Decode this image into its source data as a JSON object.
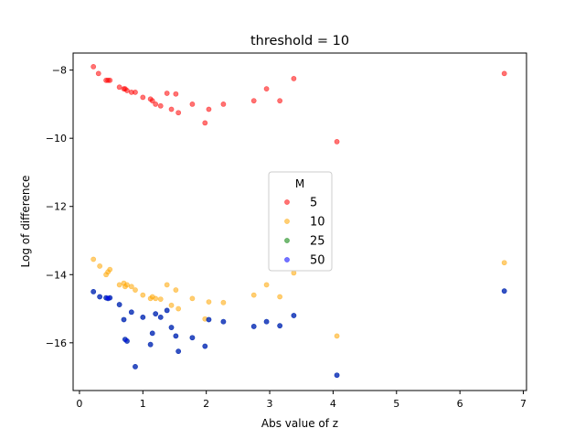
{
  "chart_data": {
    "type": "scatter",
    "title": "threshold = 10",
    "xlabel": "Abs value of z",
    "ylabel": "Log of difference",
    "xlim": [
      -0.1,
      7.05
    ],
    "ylim": [
      -17.4,
      -7.5
    ],
    "xticks": [
      0,
      1,
      2,
      3,
      4,
      5,
      6,
      7
    ],
    "yticks": [
      -16,
      -14,
      -12,
      -10,
      -8
    ],
    "grid": false,
    "legend": {
      "title": "M",
      "placement": "center"
    },
    "series": [
      {
        "name": "5",
        "color": "#ff0000",
        "opacity": 0.55,
        "points": [
          [
            0.22,
            -7.9
          ],
          [
            0.3,
            -8.1
          ],
          [
            0.42,
            -8.3
          ],
          [
            0.45,
            -8.3
          ],
          [
            0.48,
            -8.3
          ],
          [
            0.63,
            -8.5
          ],
          [
            0.7,
            -8.55
          ],
          [
            0.72,
            -8.55
          ],
          [
            0.75,
            -8.6
          ],
          [
            0.82,
            -8.65
          ],
          [
            0.88,
            -8.65
          ],
          [
            1.0,
            -8.8
          ],
          [
            1.12,
            -8.85
          ],
          [
            1.15,
            -8.9
          ],
          [
            1.2,
            -9.0
          ],
          [
            1.28,
            -9.05
          ],
          [
            1.38,
            -8.68
          ],
          [
            1.45,
            -9.15
          ],
          [
            1.52,
            -8.7
          ],
          [
            1.56,
            -9.25
          ],
          [
            1.78,
            -9.0
          ],
          [
            1.98,
            -9.55
          ],
          [
            2.04,
            -9.15
          ],
          [
            2.27,
            -9.0
          ],
          [
            2.75,
            -8.9
          ],
          [
            2.95,
            -8.55
          ],
          [
            3.16,
            -8.9
          ],
          [
            3.38,
            -8.25
          ],
          [
            4.06,
            -10.1
          ],
          [
            6.7,
            -8.1
          ]
        ]
      },
      {
        "name": "10",
        "color": "#ffa500",
        "opacity": 0.55,
        "points": [
          [
            0.22,
            -13.55
          ],
          [
            0.32,
            -13.75
          ],
          [
            0.42,
            -14.0
          ],
          [
            0.45,
            -13.92
          ],
          [
            0.48,
            -13.85
          ],
          [
            0.63,
            -14.3
          ],
          [
            0.7,
            -14.25
          ],
          [
            0.72,
            -14.35
          ],
          [
            0.75,
            -14.3
          ],
          [
            0.82,
            -14.35
          ],
          [
            0.88,
            -14.45
          ],
          [
            1.0,
            -14.6
          ],
          [
            1.12,
            -14.7
          ],
          [
            1.15,
            -14.65
          ],
          [
            1.2,
            -14.7
          ],
          [
            1.28,
            -14.72
          ],
          [
            1.38,
            -14.3
          ],
          [
            1.45,
            -14.9
          ],
          [
            1.52,
            -14.45
          ],
          [
            1.56,
            -15.0
          ],
          [
            1.78,
            -14.7
          ],
          [
            1.98,
            -15.3
          ],
          [
            2.04,
            -14.8
          ],
          [
            2.27,
            -14.82
          ],
          [
            2.75,
            -14.6
          ],
          [
            2.95,
            -14.3
          ],
          [
            3.16,
            -14.65
          ],
          [
            3.38,
            -13.95
          ],
          [
            4.06,
            -15.8
          ],
          [
            6.7,
            -13.65
          ]
        ]
      },
      {
        "name": "25",
        "color": "#008000",
        "opacity": 0.55,
        "points": [
          [
            0.22,
            -14.5
          ],
          [
            0.32,
            -14.65
          ],
          [
            0.42,
            -14.68
          ],
          [
            0.45,
            -14.7
          ],
          [
            0.48,
            -14.68
          ],
          [
            0.63,
            -14.88
          ],
          [
            0.7,
            -15.32
          ],
          [
            0.72,
            -15.9
          ],
          [
            0.75,
            -15.95
          ],
          [
            0.82,
            -15.1
          ],
          [
            0.88,
            -16.7
          ],
          [
            1.0,
            -15.25
          ],
          [
            1.12,
            -16.05
          ],
          [
            1.15,
            -15.72
          ],
          [
            1.2,
            -15.15
          ],
          [
            1.28,
            -15.25
          ],
          [
            1.38,
            -15.05
          ],
          [
            1.45,
            -15.55
          ],
          [
            1.52,
            -15.8
          ],
          [
            1.56,
            -16.25
          ],
          [
            1.78,
            -15.85
          ],
          [
            1.98,
            -16.1
          ],
          [
            2.04,
            -15.32
          ],
          [
            2.27,
            -15.38
          ],
          [
            2.75,
            -15.52
          ],
          [
            2.95,
            -15.38
          ],
          [
            3.16,
            -15.5
          ],
          [
            3.38,
            -15.2
          ],
          [
            4.06,
            -16.95
          ],
          [
            6.7,
            -14.48
          ]
        ]
      },
      {
        "name": "50",
        "color": "#0000ff",
        "opacity": 0.55,
        "points": [
          [
            0.22,
            -14.5
          ],
          [
            0.32,
            -14.65
          ],
          [
            0.42,
            -14.68
          ],
          [
            0.45,
            -14.7
          ],
          [
            0.48,
            -14.68
          ],
          [
            0.63,
            -14.88
          ],
          [
            0.7,
            -15.32
          ],
          [
            0.72,
            -15.9
          ],
          [
            0.75,
            -15.95
          ],
          [
            0.82,
            -15.1
          ],
          [
            0.88,
            -16.7
          ],
          [
            1.0,
            -15.25
          ],
          [
            1.12,
            -16.05
          ],
          [
            1.15,
            -15.72
          ],
          [
            1.2,
            -15.15
          ],
          [
            1.28,
            -15.25
          ],
          [
            1.38,
            -15.05
          ],
          [
            1.45,
            -15.55
          ],
          [
            1.52,
            -15.8
          ],
          [
            1.56,
            -16.25
          ],
          [
            1.78,
            -15.85
          ],
          [
            1.98,
            -16.1
          ],
          [
            2.04,
            -15.32
          ],
          [
            2.27,
            -15.38
          ],
          [
            2.75,
            -15.52
          ],
          [
            2.95,
            -15.38
          ],
          [
            3.16,
            -15.5
          ],
          [
            3.38,
            -15.2
          ],
          [
            4.06,
            -16.95
          ],
          [
            6.7,
            -14.48
          ]
        ]
      }
    ]
  }
}
